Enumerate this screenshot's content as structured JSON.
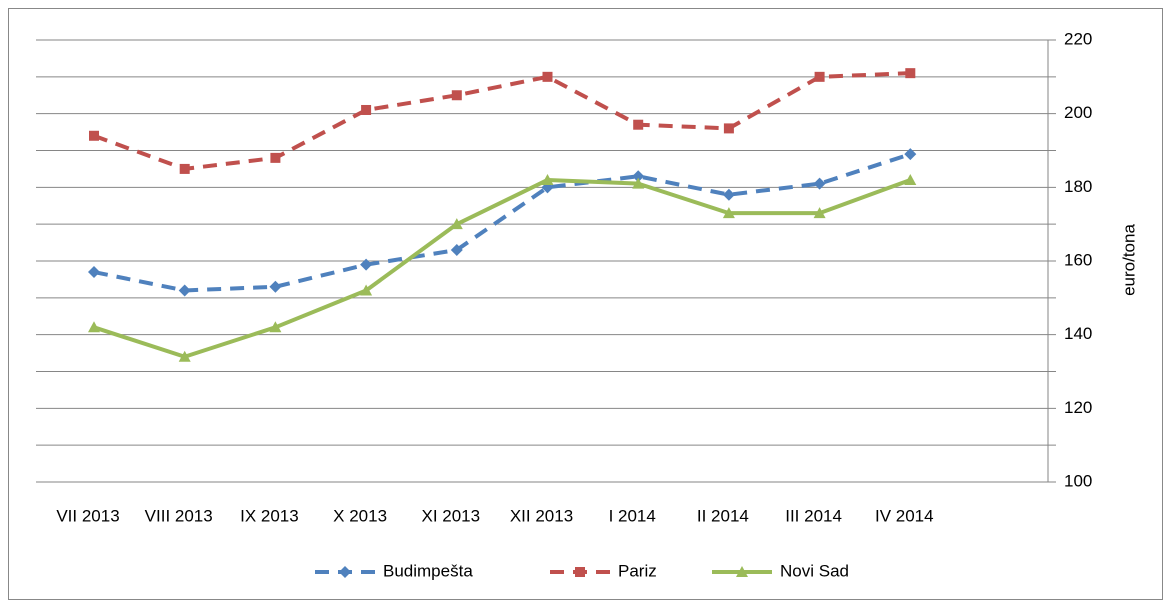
{
  "chart_data": {
    "type": "line",
    "y_axis_label": "euro/tona",
    "categories": [
      "VII 2013",
      "VIII 2013",
      "IX 2013",
      "X 2013",
      "XI 2013",
      "XII 2013",
      "I 2014",
      "II 2014",
      "III 2014",
      "IV 2014"
    ],
    "series": [
      {
        "name": "Budimpešta",
        "color": "#4f81bd",
        "style": "dashed",
        "marker": "diamond",
        "values": [
          157,
          152,
          153,
          159,
          163,
          180,
          183,
          178,
          181,
          189
        ]
      },
      {
        "name": "Pariz",
        "color": "#c0504d",
        "style": "dashed",
        "marker": "square",
        "values": [
          194,
          185,
          188,
          201,
          205,
          210,
          197,
          196,
          210,
          211
        ]
      },
      {
        "name": "Novi Sad",
        "color": "#9bbb59",
        "style": "solid",
        "marker": "triangle",
        "values": [
          142,
          134,
          142,
          152,
          170,
          182,
          181,
          173,
          173,
          182
        ]
      }
    ],
    "ylim": [
      100,
      220
    ],
    "yticks": [
      100,
      120,
      140,
      160,
      180,
      200,
      220
    ],
    "minor_yticks": [
      110,
      130,
      150,
      170,
      190,
      210
    ],
    "y_axis_side": "right",
    "grid": true,
    "legend": "bottom"
  }
}
